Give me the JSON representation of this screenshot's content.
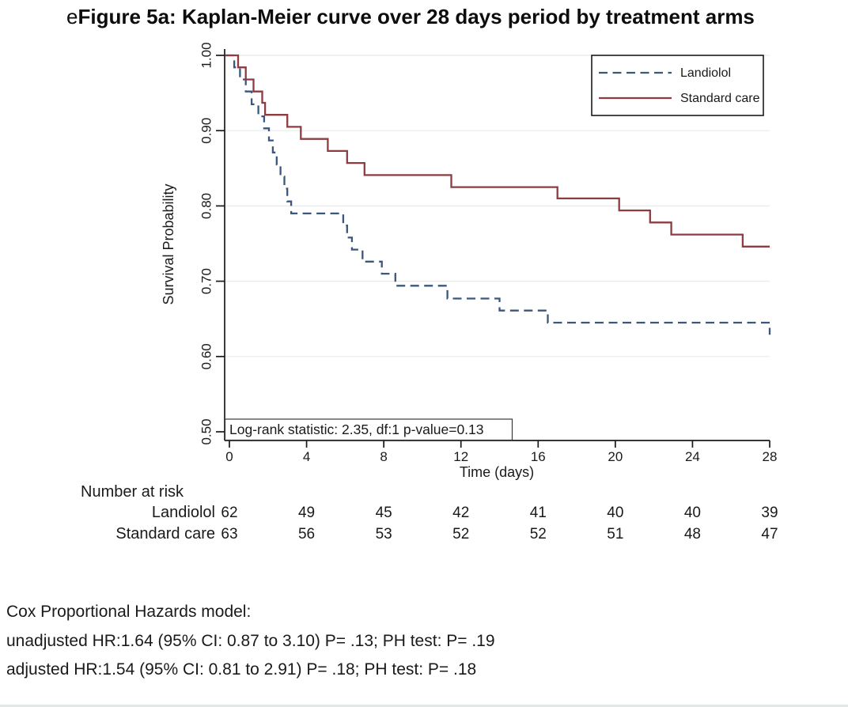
{
  "title": {
    "prefix": "e",
    "main": "Figure 5a: Kaplan-Meier curve over 28 days period by treatment arms"
  },
  "chart_data": {
    "type": "line",
    "subtype": "kaplan-meier-step",
    "xlabel": "Time (days)",
    "ylabel": "Survival Probability",
    "xlim": [
      0,
      28
    ],
    "ylim": [
      0.5,
      1.0
    ],
    "xticks": [
      "0",
      "4",
      "8",
      "12",
      "16",
      "20",
      "24",
      "28"
    ],
    "yticks": [
      "1.00",
      "0.90",
      "0.80",
      "0.70",
      "0.60",
      "0.50"
    ],
    "grid": "horizontal-light",
    "legend_position": "top-right",
    "annotation": "Log-rank statistic: 2.35, df:1  p-value=0.13",
    "series": [
      {
        "name": "Landiolol",
        "style": "dashed",
        "color": "#3a577d",
        "start": [
          0,
          1.0
        ],
        "steps": [
          [
            0.25,
            0.984
          ],
          [
            0.55,
            0.968
          ],
          [
            0.85,
            0.952
          ],
          [
            1.15,
            0.935
          ],
          [
            1.5,
            0.919
          ],
          [
            1.8,
            0.903
          ],
          [
            2.05,
            0.887
          ],
          [
            2.25,
            0.871
          ],
          [
            2.45,
            0.855
          ],
          [
            2.65,
            0.839
          ],
          [
            2.85,
            0.823
          ],
          [
            3.0,
            0.806
          ],
          [
            3.2,
            0.79
          ],
          [
            5.9,
            0.774
          ],
          [
            6.1,
            0.758
          ],
          [
            6.35,
            0.742
          ],
          [
            6.9,
            0.726
          ],
          [
            7.9,
            0.71
          ],
          [
            8.6,
            0.694
          ],
          [
            11.3,
            0.677
          ],
          [
            14.0,
            0.661
          ],
          [
            16.5,
            0.645
          ],
          [
            28,
            0.629
          ]
        ]
      },
      {
        "name": "Standard care",
        "style": "solid",
        "color": "#8e3c42",
        "start": [
          0,
          1.0
        ],
        "steps": [
          [
            0.45,
            0.984
          ],
          [
            0.85,
            0.968
          ],
          [
            1.25,
            0.952
          ],
          [
            1.7,
            0.937
          ],
          [
            1.85,
            0.921
          ],
          [
            3.0,
            0.905
          ],
          [
            3.7,
            0.889
          ],
          [
            5.1,
            0.873
          ],
          [
            6.1,
            0.857
          ],
          [
            7.0,
            0.841
          ],
          [
            11.5,
            0.825
          ],
          [
            17.0,
            0.81
          ],
          [
            20.2,
            0.794
          ],
          [
            21.8,
            0.778
          ],
          [
            22.9,
            0.762
          ],
          [
            26.6,
            0.746
          ]
        ]
      }
    ]
  },
  "risk_table": {
    "header": "Number at risk",
    "time_points": [
      0,
      4,
      8,
      12,
      16,
      20,
      24,
      28
    ],
    "rows": [
      {
        "label": "Landiolol",
        "values": [
          "62",
          "49",
          "45",
          "42",
          "41",
          "40",
          "40",
          "39"
        ]
      },
      {
        "label": "Standard care",
        "values": [
          "63",
          "56",
          "53",
          "52",
          "52",
          "51",
          "48",
          "47"
        ]
      }
    ]
  },
  "cox_model": {
    "heading": "Cox Proportional Hazards model:",
    "lines": [
      "unadjusted HR:1.64 (95% CI: 0.87 to 3.10) P= .13; PH test: P= .19",
      "adjusted HR:1.54 (95% CI: 0.81 to 2.91) P= .18; PH test: P= .18"
    ]
  },
  "colors": {
    "landiolol": "#3a577d",
    "standard_care": "#8e3c42",
    "axis": "#1a1a1a",
    "grid": "#e8eaea",
    "annotation_box": "#3a3a3a"
  }
}
